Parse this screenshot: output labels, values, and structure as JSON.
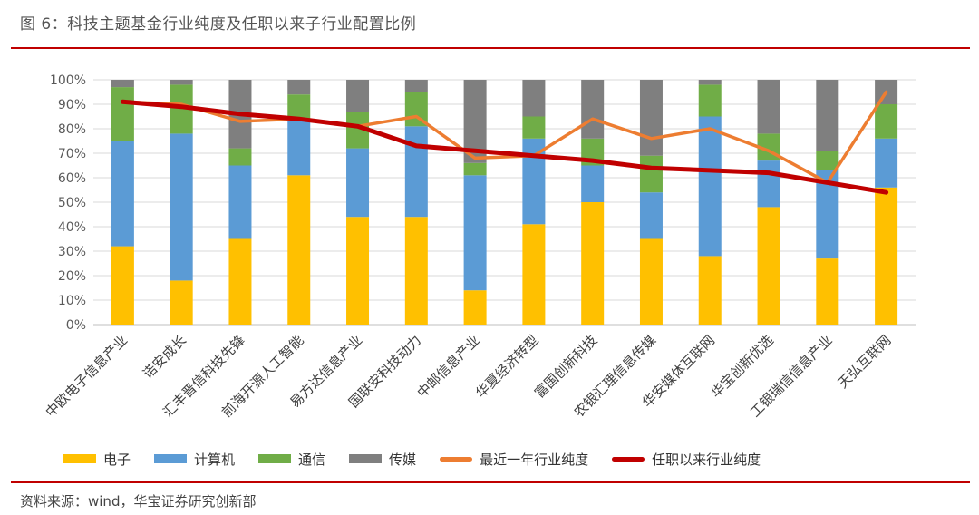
{
  "header": {
    "title": "图 6：科技主题基金行业纯度及任职以来子行业配置比例"
  },
  "footer": {
    "source": "资料来源：wind，华宝证券研究创新部"
  },
  "colors": {
    "electronics": "#FFC000",
    "computer": "#5B9BD5",
    "telecom": "#70AD47",
    "media": "#7F7F7F",
    "recent_purity": "#ED7D31",
    "tenure_purity": "#C00000",
    "rule": "#c00000"
  },
  "chart_data": {
    "type": "bar",
    "stacked": true,
    "categories": [
      "中欧电子信息产业",
      "诺安成长",
      "汇丰晋信科技先锋",
      "前海开源人工智能",
      "易方达信息产业",
      "国联安科技动力",
      "中邮信息产业",
      "华夏经济转型",
      "富国创新科技",
      "农银汇理信息传媒",
      "华安媒体互联网",
      "华宝创新优选",
      "工银瑞信信息产业",
      "天弘互联网"
    ],
    "series": [
      {
        "name": "电子",
        "kind": "bar",
        "values": [
          32,
          18,
          35,
          61,
          44,
          44,
          14,
          41,
          50,
          35,
          28,
          48,
          27,
          56
        ]
      },
      {
        "name": "计算机",
        "kind": "bar",
        "values": [
          43,
          60,
          30,
          22,
          28,
          37,
          47,
          35,
          15,
          19,
          57,
          19,
          36,
          20
        ]
      },
      {
        "name": "通信",
        "kind": "bar",
        "values": [
          22,
          20,
          7,
          11,
          15,
          14,
          5,
          9,
          11,
          15,
          13,
          11,
          8,
          14
        ]
      },
      {
        "name": "传媒",
        "kind": "bar",
        "values": [
          3,
          2,
          28,
          6,
          13,
          5,
          34,
          15,
          24,
          31,
          2,
          22,
          29,
          10
        ]
      },
      {
        "name": "最近一年行业纯度",
        "kind": "line",
        "values": [
          91,
          90,
          83,
          84,
          81,
          85,
          68,
          69,
          84,
          76,
          80,
          71,
          58,
          95
        ]
      },
      {
        "name": "任职以来行业纯度",
        "kind": "line",
        "values": [
          91,
          89,
          86,
          84,
          81,
          73,
          71,
          69,
          67,
          64,
          63,
          62,
          58,
          54
        ]
      }
    ],
    "yticks": [
      "0%",
      "10%",
      "20%",
      "30%",
      "40%",
      "50%",
      "60%",
      "70%",
      "80%",
      "90%",
      "100%"
    ],
    "ylim": [
      0,
      100
    ],
    "grid": true,
    "legend_position": "bottom"
  }
}
